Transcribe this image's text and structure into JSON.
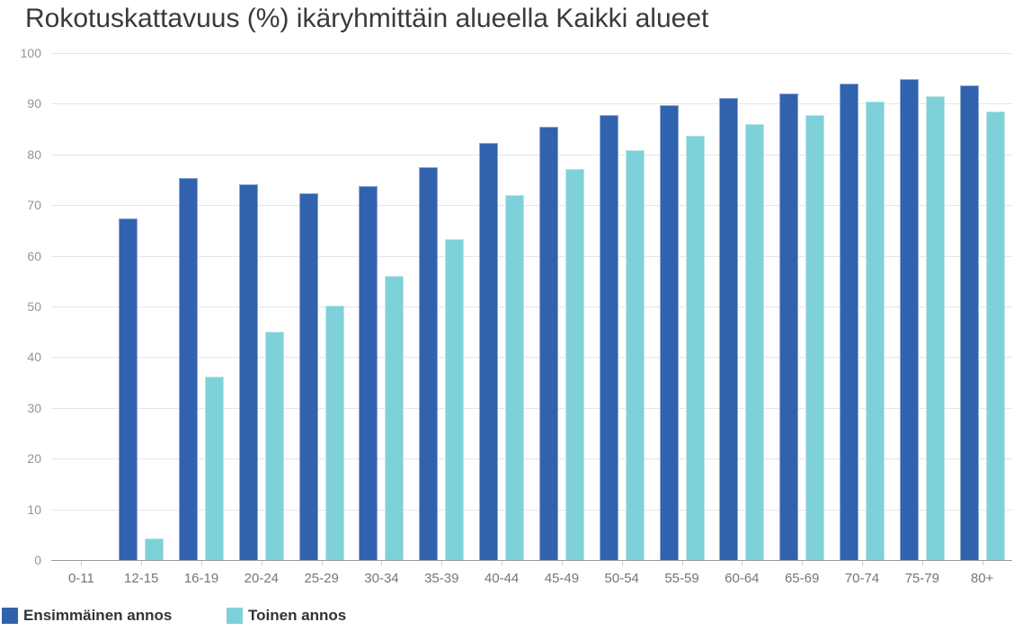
{
  "title": "Rokotuskattavuus (%) ikäryhmittäin alueella Kaikki alueet",
  "legend": {
    "items": [
      {
        "label": "Ensimmäinen annos",
        "color": "#3162ae"
      },
      {
        "label": "Toinen annos",
        "color": "#7fd1d9"
      }
    ],
    "position": "bottom-left"
  },
  "colors": {
    "series_first_dose": "#3162ae",
    "series_second_dose": "#7fd1d9",
    "gridline": "#e6e6e6",
    "axis_line": "#9a9a9a",
    "title_text": "#3a3a3e",
    "axis_label_text": "#75757b"
  },
  "chart_data": {
    "type": "bar",
    "title": "Rokotuskattavuus (%) ikäryhmittäin alueella Kaikki alueet",
    "xlabel": "",
    "ylabel": "",
    "ylim": [
      0,
      100
    ],
    "yticks": [
      0,
      10,
      20,
      30,
      40,
      50,
      60,
      70,
      80,
      90,
      100
    ],
    "grid": true,
    "legend_position": "bottom-left",
    "categories": [
      "0-11",
      "12-15",
      "16-19",
      "20-24",
      "25-29",
      "30-34",
      "35-39",
      "40-44",
      "45-49",
      "50-54",
      "55-59",
      "60-64",
      "65-69",
      "70-74",
      "75-79",
      "80+"
    ],
    "series": [
      {
        "name": "Ensimmäinen annos",
        "color": "#3162ae",
        "values": [
          0,
          67.4,
          75.3,
          74.2,
          72.4,
          73.7,
          77.5,
          82.3,
          85.5,
          87.8,
          89.7,
          91.1,
          92.1,
          94.0,
          94.8,
          93.6
        ]
      },
      {
        "name": "Toinen annos",
        "color": "#7fd1d9",
        "values": [
          0,
          4.3,
          36.2,
          45.0,
          50.1,
          56.1,
          63.3,
          72.0,
          77.1,
          80.9,
          83.7,
          86.0,
          87.7,
          90.4,
          91.5,
          88.4
        ]
      }
    ]
  }
}
